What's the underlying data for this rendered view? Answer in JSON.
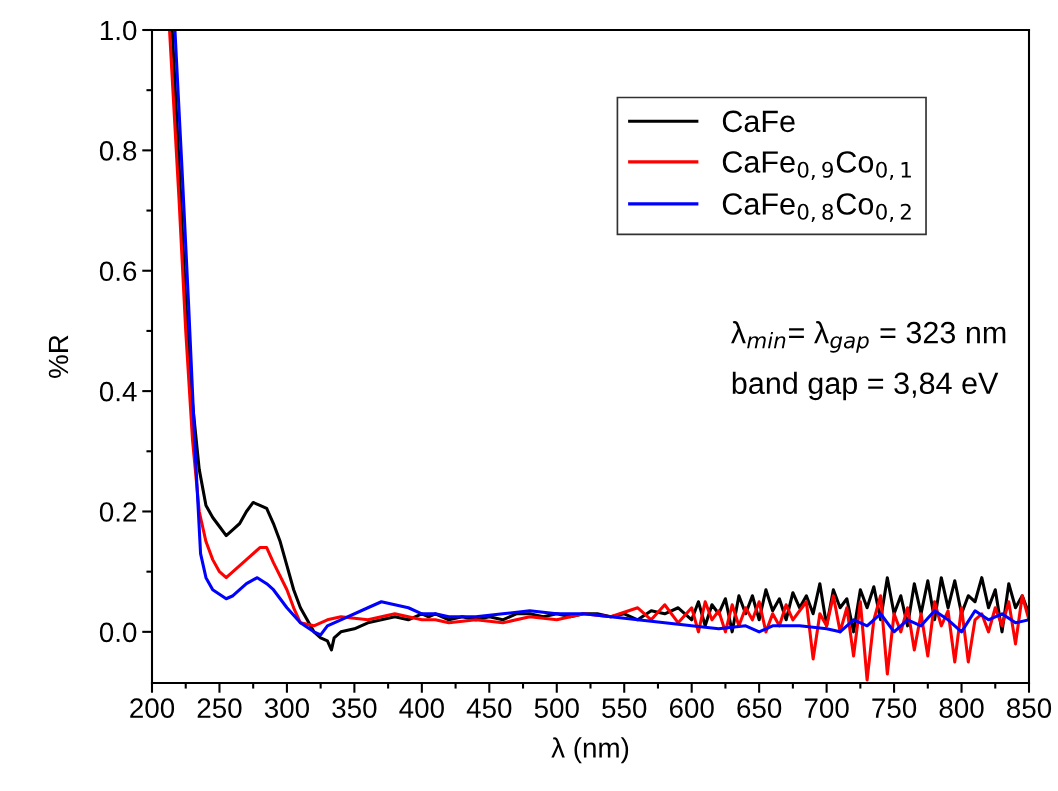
{
  "chart_data": {
    "type": "line",
    "xlabel": "λ (nm)",
    "ylabel": "%R",
    "xlim": [
      200,
      850
    ],
    "xticks": [
      200,
      250,
      300,
      350,
      400,
      450,
      500,
      550,
      600,
      650,
      700,
      750,
      800,
      850
    ],
    "ylim": [
      -0.085,
      1.0
    ],
    "yticks": [
      {
        "value": 0,
        "label": "0.0"
      },
      0.2,
      0.4,
      0.6,
      0.8,
      {
        "value": 1,
        "label": "1.0"
      }
    ],
    "grid": false,
    "legend": "top right",
    "marker": "none",
    "line_style": "solid",
    "annotations": [
      "λ$_{min}$= λ$_{gap}$ = 323 nm",
      "band gap = 3,84 eV"
    ],
    "series": [
      {
        "name": "CaFe",
        "color": "#000000",
        "x": [
          215,
          220,
          225,
          230,
          235,
          240,
          245,
          250,
          255,
          260,
          265,
          270,
          275,
          280,
          285,
          290,
          295,
          300,
          305,
          310,
          315,
          320,
          325,
          330,
          333,
          335,
          340,
          350,
          360,
          370,
          380,
          390,
          400,
          405,
          410,
          420,
          430,
          440,
          450,
          460,
          470,
          480,
          490,
          500,
          510,
          520,
          530,
          540,
          550,
          560,
          570,
          580,
          590,
          600,
          605,
          610,
          615,
          620,
          625,
          630,
          635,
          640,
          645,
          650,
          655,
          660,
          665,
          670,
          675,
          680,
          685,
          690,
          695,
          700,
          705,
          710,
          715,
          720,
          725,
          730,
          735,
          740,
          745,
          750,
          755,
          760,
          765,
          770,
          775,
          780,
          785,
          790,
          795,
          800,
          805,
          810,
          815,
          820,
          825,
          830,
          835,
          840,
          845,
          850
        ],
        "values": [
          1.0,
          0.78,
          0.55,
          0.38,
          0.27,
          0.21,
          0.19,
          0.175,
          0.16,
          0.17,
          0.18,
          0.2,
          0.215,
          0.21,
          0.205,
          0.18,
          0.15,
          0.11,
          0.07,
          0.04,
          0.02,
          0.0,
          -0.01,
          -0.015,
          -0.03,
          -0.01,
          0.0,
          0.005,
          0.015,
          0.02,
          0.025,
          0.02,
          0.03,
          0.025,
          0.03,
          0.02,
          0.025,
          0.02,
          0.025,
          0.02,
          0.03,
          0.03,
          0.025,
          0.03,
          0.025,
          0.03,
          0.03,
          0.025,
          0.03,
          0.02,
          0.035,
          0.03,
          0.04,
          0.02,
          0.05,
          0.01,
          0.045,
          0.03,
          0.055,
          0.0,
          0.06,
          0.03,
          0.06,
          0.02,
          0.07,
          0.035,
          0.055,
          0.02,
          0.065,
          0.04,
          0.06,
          0.03,
          0.08,
          0.01,
          0.07,
          0.04,
          0.055,
          0.0,
          0.07,
          0.04,
          0.075,
          0.02,
          0.09,
          0.03,
          0.06,
          0.01,
          0.08,
          0.03,
          0.085,
          0.02,
          0.09,
          0.04,
          0.085,
          0.03,
          0.06,
          0.05,
          0.09,
          0.04,
          0.07,
          0.0,
          0.08,
          0.04,
          0.06,
          0.03
        ]
      },
      {
        "name": "CaFe$_{0,9}$Co$_{0,1}$",
        "color": "#ff0000",
        "x": [
          213,
          220,
          225,
          230,
          235,
          240,
          245,
          250,
          255,
          260,
          270,
          280,
          285,
          290,
          300,
          305,
          310,
          320,
          330,
          340,
          360,
          380,
          400,
          410,
          420,
          440,
          460,
          480,
          500,
          520,
          540,
          560,
          570,
          580,
          590,
          600,
          605,
          610,
          615,
          620,
          625,
          630,
          635,
          640,
          645,
          650,
          655,
          660,
          665,
          670,
          675,
          680,
          685,
          690,
          695,
          700,
          705,
          710,
          715,
          720,
          725,
          730,
          735,
          740,
          745,
          750,
          755,
          760,
          765,
          770,
          775,
          780,
          785,
          790,
          795,
          800,
          805,
          810,
          815,
          820,
          825,
          830,
          835,
          840,
          845,
          850
        ],
        "values": [
          1.0,
          0.72,
          0.5,
          0.32,
          0.2,
          0.15,
          0.12,
          0.1,
          0.09,
          0.1,
          0.12,
          0.14,
          0.14,
          0.115,
          0.07,
          0.04,
          0.015,
          0.01,
          0.02,
          0.025,
          0.02,
          0.03,
          0.02,
          0.02,
          0.015,
          0.02,
          0.015,
          0.025,
          0.02,
          0.03,
          0.025,
          0.04,
          0.02,
          0.045,
          0.015,
          0.04,
          0.0,
          0.05,
          0.02,
          0.035,
          0.0,
          0.045,
          0.01,
          0.04,
          0.02,
          0.05,
          0.0,
          0.03,
          0.01,
          0.045,
          0.02,
          0.035,
          0.05,
          -0.045,
          0.03,
          0.01,
          0.06,
          0.0,
          0.04,
          -0.04,
          0.05,
          -0.08,
          0.02,
          0.06,
          -0.07,
          0.03,
          0.0,
          0.04,
          -0.03,
          0.03,
          -0.04,
          0.05,
          0.01,
          0.035,
          -0.05,
          0.04,
          -0.05,
          0.02,
          0.03,
          0.0,
          0.04,
          0.01,
          0.05,
          -0.02,
          0.06,
          0.02
        ]
      },
      {
        "name": "CaFe$_{0,8}$Co$_{0,2}$",
        "color": "#0000ff",
        "x": [
          217,
          222,
          227,
          232,
          236,
          240,
          245,
          255,
          260,
          270,
          278,
          285,
          290,
          300,
          310,
          320,
          325,
          330,
          340,
          360,
          370,
          380,
          390,
          400,
          410,
          420,
          440,
          460,
          480,
          500,
          520,
          540,
          560,
          580,
          600,
          620,
          640,
          650,
          660,
          680,
          700,
          710,
          720,
          730,
          740,
          750,
          760,
          770,
          780,
          790,
          800,
          810,
          820,
          830,
          840,
          850
        ],
        "values": [
          1.0,
          0.78,
          0.55,
          0.3,
          0.13,
          0.09,
          0.07,
          0.055,
          0.06,
          0.08,
          0.09,
          0.08,
          0.07,
          0.04,
          0.015,
          0.0,
          -0.005,
          0.01,
          0.02,
          0.04,
          0.05,
          0.045,
          0.04,
          0.03,
          0.03,
          0.025,
          0.025,
          0.03,
          0.035,
          0.03,
          0.03,
          0.025,
          0.02,
          0.015,
          0.01,
          0.005,
          0.01,
          0.0,
          0.01,
          0.01,
          0.005,
          0.0,
          0.02,
          0.01,
          0.03,
          0.0,
          0.02,
          0.01,
          0.035,
          0.02,
          0.0,
          0.035,
          0.02,
          0.03,
          0.015,
          0.02
        ]
      }
    ]
  }
}
